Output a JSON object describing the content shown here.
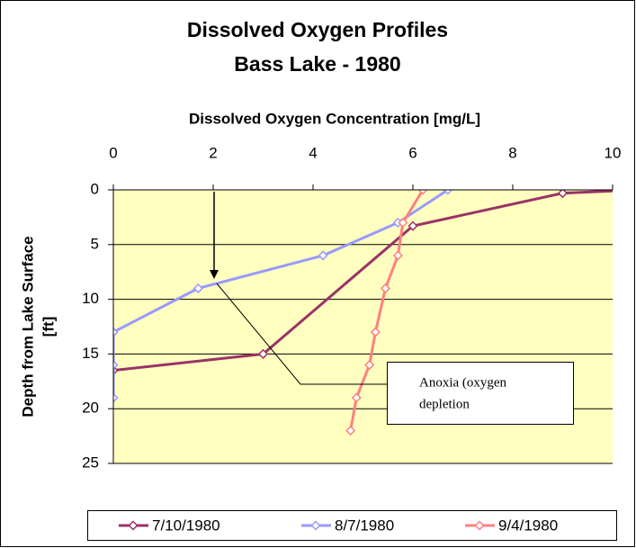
{
  "chart_data": {
    "type": "line",
    "title": [
      "Dissolved Oxygen Profiles",
      "Bass Lake - 1980"
    ],
    "x_label": "Dissolved Oxygen Concentration [mg/L]",
    "y_label": [
      "Depth from Lake Surface",
      "[ft]"
    ],
    "xlim": [
      0,
      10
    ],
    "xticks": [
      0,
      2,
      4,
      6,
      8,
      10
    ],
    "ylim": [
      0,
      25
    ],
    "yticks": [
      0,
      5,
      10,
      15,
      20,
      25
    ],
    "y_inverted": true,
    "x_axis_position": "top",
    "grid": true,
    "legend": "bottom",
    "series": [
      {
        "name": "7/10/1980",
        "color": "#993366",
        "x": [
          10.5,
          9,
          6,
          3,
          0
        ],
        "y": [
          0,
          0.3,
          3.3,
          15,
          16.5
        ]
      },
      {
        "name": "8/7/1980",
        "color": "#9999ff",
        "x": [
          6.7,
          5.7,
          4.2,
          1.7,
          0,
          0,
          0
        ],
        "y": [
          0,
          3,
          6,
          9,
          13,
          16,
          19
        ]
      },
      {
        "name": "9/4/1980",
        "color": "#ff8080",
        "x": [
          6.2,
          5.8,
          5.7,
          5.45,
          5.25,
          5.13,
          4.87,
          4.75
        ],
        "y": [
          0,
          3,
          6,
          9,
          13,
          16,
          19,
          22
        ]
      }
    ],
    "annotation": [
      "Anoxia (oxygen",
      "depletion"
    ]
  }
}
